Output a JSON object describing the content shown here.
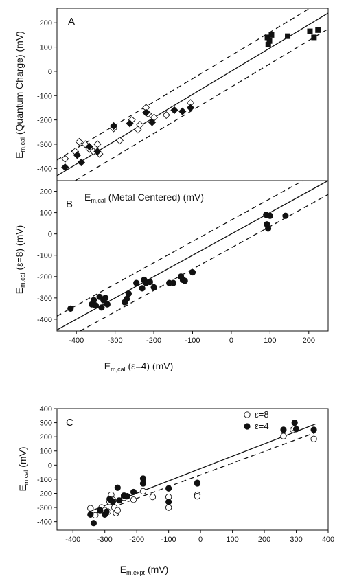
{
  "chart_data": [
    {
      "type": "scatter",
      "panel_label": "A",
      "xlabel": {
        "main": "E",
        "sub": "m,cal",
        "rest": " (Metal Centered) (mV)"
      },
      "ylabel": {
        "main": "E",
        "sub": "m,cal",
        "rest": " (Quantum Charge) (mV)"
      },
      "xlim": [
        -430,
        240
      ],
      "ylim": [
        -450,
        260
      ],
      "yticks": [
        -400,
        -300,
        -200,
        -100,
        0,
        100,
        200
      ],
      "tick_labels_y": [
        "-400",
        "-300",
        "-200",
        "-100",
        "0",
        "100",
        "200"
      ],
      "reference_lines": [
        {
          "style": "solid",
          "slope": 1,
          "intercept": 0
        },
        {
          "style": "dashed",
          "slope": 1,
          "intercept": 65
        },
        {
          "style": "dashed",
          "slope": 1,
          "intercept": -65
        }
      ],
      "series": [
        {
          "marker": "open-diamond",
          "points": [
            [
              -410,
              -360
            ],
            [
              -385,
              -330
            ],
            [
              -375,
              -290
            ],
            [
              -360,
              -300
            ],
            [
              -350,
              -320
            ],
            [
              -340,
              -330
            ],
            [
              -330,
              -300
            ],
            [
              -325,
              -340
            ],
            [
              -290,
              -235
            ],
            [
              -275,
              -285
            ],
            [
              -245,
              -200
            ],
            [
              -230,
              -240
            ],
            [
              -225,
              -220
            ],
            [
              -210,
              -150
            ],
            [
              -205,
              -175
            ],
            [
              -190,
              -190
            ],
            [
              -160,
              -180
            ],
            [
              -100,
              -130
            ]
          ]
        },
        {
          "marker": "filled-diamond",
          "points": [
            [
              -410,
              -395
            ],
            [
              -380,
              -345
            ],
            [
              -370,
              -375
            ],
            [
              -350,
              -310
            ],
            [
              -330,
              -330
            ],
            [
              -290,
              -225
            ],
            [
              -250,
              -215
            ],
            [
              -210,
              -170
            ],
            [
              -195,
              -210
            ],
            [
              -140,
              -160
            ],
            [
              -120,
              -165
            ],
            [
              -100,
              -150
            ]
          ]
        },
        {
          "marker": "filled-square",
          "points": [
            [
              90,
              140
            ],
            [
              92,
              110
            ],
            [
              95,
              125
            ],
            [
              100,
              150
            ],
            [
              140,
              145
            ],
            [
              195,
              165
            ],
            [
              205,
              140
            ],
            [
              215,
              170
            ]
          ]
        }
      ]
    },
    {
      "type": "scatter",
      "panel_label": "B",
      "xlabel": {
        "main": "E",
        "sub": "m,cal",
        "rest": " (ε=4) (mV)"
      },
      "ylabel": {
        "main": "E",
        "sub": "m,cal",
        "rest": " (ε=8) (mV)"
      },
      "xlim": [
        -450,
        250
      ],
      "ylim": [
        -455,
        250
      ],
      "xticks": [
        -400,
        -300,
        -200,
        -100,
        0,
        100,
        200
      ],
      "tick_labels_x": [
        "-400",
        "-300",
        "-200",
        "-100",
        "0",
        "100",
        "200"
      ],
      "yticks": [
        -400,
        -300,
        -200,
        -100,
        0,
        100,
        200
      ],
      "tick_labels_y": [
        "-400",
        "-300",
        "-200",
        "-100",
        "0",
        "100",
        "200"
      ],
      "reference_lines": [
        {
          "style": "solid",
          "slope": 1,
          "intercept": 0
        },
        {
          "style": "dashed",
          "slope": 1,
          "intercept": 65
        },
        {
          "style": "dashed",
          "slope": 1,
          "intercept": -65
        }
      ],
      "series": [
        {
          "marker": "filled-circle",
          "points": [
            [
              -415,
              -350
            ],
            [
              -360,
              -330
            ],
            [
              -355,
              -310
            ],
            [
              -350,
              -335
            ],
            [
              -340,
              -295
            ],
            [
              -335,
              -345
            ],
            [
              -330,
              -310
            ],
            [
              -325,
              -300
            ],
            [
              -320,
              -330
            ],
            [
              -275,
              -320
            ],
            [
              -270,
              -305
            ],
            [
              -265,
              -280
            ],
            [
              -245,
              -230
            ],
            [
              -230,
              -255
            ],
            [
              -225,
              -215
            ],
            [
              -220,
              -230
            ],
            [
              -210,
              -225
            ],
            [
              -200,
              -250
            ],
            [
              -160,
              -230
            ],
            [
              -150,
              -230
            ],
            [
              -130,
              -200
            ],
            [
              -125,
              -215
            ],
            [
              -120,
              -220
            ],
            [
              -100,
              -180
            ],
            [
              90,
              90
            ],
            [
              92,
              45
            ],
            [
              95,
              25
            ],
            [
              100,
              85
            ],
            [
              140,
              85
            ]
          ]
        }
      ]
    },
    {
      "type": "scatter",
      "panel_label": "C",
      "xlabel": {
        "main": "E",
        "sub": "m,expt",
        "rest": " (mV)"
      },
      "ylabel": {
        "main": "E",
        "sub": "m,cal",
        "rest": " (mV)"
      },
      "xlim": [
        -450,
        400
      ],
      "ylim": [
        -460,
        400
      ],
      "xticks": [
        -400,
        -300,
        -200,
        -100,
        0,
        100,
        200,
        300,
        400
      ],
      "tick_labels_x": [
        "-400",
        "-300",
        "-200",
        "-100",
        "0",
        "100",
        "200",
        "300",
        "400"
      ],
      "yticks": [
        -400,
        -300,
        -200,
        -100,
        0,
        100,
        200,
        300,
        400
      ],
      "tick_labels_y": [
        "-400",
        "-300",
        "-200",
        "-100",
        "0",
        "100",
        "200",
        "300",
        "400"
      ],
      "legend": [
        {
          "marker": "open-circle",
          "label": "ε=8"
        },
        {
          "marker": "filled-circle",
          "label": "ε=4"
        }
      ],
      "legend_position": "top-right",
      "fit_lines": [
        {
          "style": "solid",
          "series": "ε=4",
          "from": [
            -350,
            -330
          ],
          "to": [
            360,
            290
          ]
        },
        {
          "style": "dashed",
          "series": "ε=8",
          "from": [
            -350,
            -360
          ],
          "to": [
            360,
            230
          ]
        }
      ],
      "series": [
        {
          "name": "ε=8",
          "marker": "open-circle",
          "points": [
            [
              -345,
              -305
            ],
            [
              -330,
              -355
            ],
            [
              -310,
              -300
            ],
            [
              -300,
              -320
            ],
            [
              -290,
              -330
            ],
            [
              -285,
              -260
            ],
            [
              -280,
              -210
            ],
            [
              -275,
              -245
            ],
            [
              -270,
              -300
            ],
            [
              -265,
              -340
            ],
            [
              -260,
              -320
            ],
            [
              -240,
              -230
            ],
            [
              -210,
              -245
            ],
            [
              -180,
              -185
            ],
            [
              -150,
              -225
            ],
            [
              -100,
              -225
            ],
            [
              -100,
              -300
            ],
            [
              -10,
              -210
            ],
            [
              -10,
              -220
            ],
            [
              260,
              205
            ],
            [
              290,
              250
            ],
            [
              295,
              260
            ],
            [
              355,
              185
            ]
          ]
        },
        {
          "name": "ε=4",
          "marker": "filled-circle",
          "points": [
            [
              -345,
              -350
            ],
            [
              -335,
              -410
            ],
            [
              -315,
              -320
            ],
            [
              -300,
              -350
            ],
            [
              -295,
              -330
            ],
            [
              -285,
              -240
            ],
            [
              -280,
              -250
            ],
            [
              -275,
              -260
            ],
            [
              -260,
              -160
            ],
            [
              -255,
              -250
            ],
            [
              -240,
              -215
            ],
            [
              -230,
              -220
            ],
            [
              -210,
              -190
            ],
            [
              -180,
              -95
            ],
            [
              -180,
              -130
            ],
            [
              -100,
              -165
            ],
            [
              -100,
              -260
            ],
            [
              -10,
              -125
            ],
            [
              -10,
              -130
            ],
            [
              260,
              250
            ],
            [
              295,
              300
            ],
            [
              300,
              255
            ],
            [
              355,
              250
            ]
          ]
        }
      ]
    }
  ]
}
